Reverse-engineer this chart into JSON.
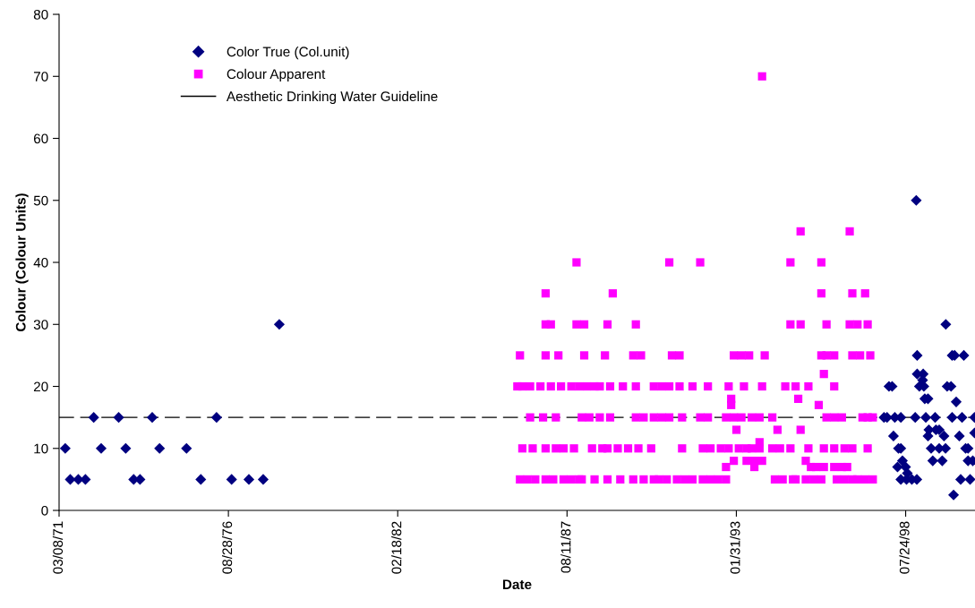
{
  "chart_data": {
    "type": "scatter",
    "xlabel": "Date",
    "ylabel": "Colour (Colour Units)",
    "xlim": [
      "1971-03-08",
      "2000-10-20"
    ],
    "ylim": [
      0,
      80
    ],
    "yticks": [
      0,
      10,
      20,
      30,
      40,
      50,
      60,
      70,
      80
    ],
    "xticks": [
      {
        "value": "1971-03-08",
        "label": "03/08/71"
      },
      {
        "value": "1976-08-28",
        "label": "08/28/76"
      },
      {
        "value": "1982-02-18",
        "label": "02/18/82"
      },
      {
        "value": "1987-08-11",
        "label": "08/11/87"
      },
      {
        "value": "1993-01-31",
        "label": "01/31/93"
      },
      {
        "value": "1998-07-24",
        "label": "07/24/98"
      }
    ],
    "grid": false,
    "legend": "top left",
    "ref_lines": [
      {
        "axis": "y",
        "value": 15,
        "label": "Aesthetic Drinking Water Guideline",
        "color": "#000000",
        "line_style": "dashed"
      }
    ],
    "series": [
      {
        "name": "Color True (Col.unit)",
        "color": "#000080",
        "marker": "diamond",
        "x": [
          "1971-05-20",
          "1971-07-18",
          "1971-10-21",
          "1972-01-13",
          "1972-04-20",
          "1972-07-17",
          "1973-02-09",
          "1973-05-03",
          "1973-08-05",
          "1973-10-19",
          "1974-03-12",
          "1974-06-07",
          "1975-04-21",
          "1975-10-07",
          "1976-04-10",
          "1976-10-05",
          "1977-04-27",
          "1977-10-13",
          "1978-04-21",
          "1997-11-10",
          "1997-12-16",
          "1998-01-08",
          "1998-02-14",
          "1998-03-02",
          "1998-03-18",
          "1998-04-19",
          "1998-04-30",
          "1998-05-28",
          "1998-05-28",
          "1998-05-28",
          "1998-06-16",
          "1998-07-23",
          "1998-08-03",
          "1998-08-13",
          "1998-10-05",
          "1998-11-14",
          "1998-11-26",
          "1998-12-03",
          "1998-12-07",
          "1998-12-07",
          "1999-01-02",
          "1999-02-09",
          "1999-02-16",
          "1999-02-24",
          "1999-03-07",
          "1999-03-19",
          "1999-04-14",
          "1999-04-14",
          "1999-04-24",
          "1999-05-21",
          "1999-06-09",
          "1999-07-07",
          "1999-07-17",
          "1999-08-24",
          "1999-08-24",
          "1999-09-29",
          "1999-10-20",
          "1999-11-07",
          "1999-11-10",
          "1999-11-26",
          "2000-01-11",
          "2000-01-24",
          "2000-01-24",
          "2000-02-10",
          "2000-02-22",
          "2000-03-12",
          "2000-04-18",
          "2000-05-04",
          "2000-05-20",
          "2000-06-10",
          "2000-07-01",
          "2000-07-30",
          "2000-07-30",
          "2000-08-23",
          "2000-09-24",
          "2000-10-15",
          "2000-10-15"
        ],
        "values": [
          10,
          5,
          5,
          5,
          15,
          10,
          15,
          10,
          5,
          5,
          15,
          10,
          10,
          5,
          15,
          5,
          5,
          5,
          30,
          15,
          15,
          20,
          20,
          12,
          15,
          7,
          10,
          15,
          10,
          5,
          8,
          7,
          5,
          6,
          5,
          15,
          50,
          5,
          25,
          22,
          20,
          21,
          22,
          20,
          18,
          15,
          18,
          12,
          13,
          10,
          8,
          15,
          13,
          13,
          10,
          8,
          12,
          10,
          30,
          20,
          20,
          15,
          25,
          2.5,
          25,
          17.5,
          12,
          5,
          15,
          25,
          10,
          10,
          8,
          5,
          8,
          15,
          12.5
        ]
      },
      {
        "name": "Colour Apparent",
        "color": "#ff00ff",
        "marker": "square",
        "x": [
          "1987-12",
          "1990-12",
          "1991-12",
          "1994-11",
          "1995-11",
          "1995-03",
          "1996-10",
          "1993-12",
          "1986-12",
          "1989-02",
          "1995-11",
          "1996-11",
          "1997-04",
          "1986-12",
          "1987-02",
          "1987-12",
          "1988-03",
          "1988-12",
          "1989-11",
          "1994-11",
          "1995-03",
          "1996-01",
          "1996-10",
          "1997-01",
          "1997-05",
          "1986-02",
          "1986-12",
          "1987-05",
          "1988-03",
          "1988-11",
          "1989-10",
          "1990-01",
          "1991-01",
          "1991-04",
          "1993-01",
          "1993-04",
          "1993-07",
          "1994-01",
          "1995-11",
          "1996-01",
          "1996-04",
          "1996-11",
          "1997-02",
          "1997-06",
          "1995-12",
          "1986-01",
          "1986-03",
          "1986-06",
          "1986-10",
          "1987-02",
          "1987-06",
          "1987-10",
          "1988-01",
          "1988-04",
          "1988-07",
          "1988-09",
          "1989-01",
          "1989-06",
          "1989-11",
          "1990-06",
          "1990-09",
          "1990-12",
          "1991-04",
          "1991-09",
          "1992-03",
          "1992-11",
          "1993-05",
          "1993-12",
          "1994-09",
          "1995-01",
          "1995-06",
          "1996-04",
          "1992-12",
          "1995-02",
          "1992-12",
          "1995-10",
          "1986-06",
          "1986-11",
          "1987-04",
          "1988-02",
          "1988-05",
          "1988-09",
          "1989-01",
          "1989-11",
          "1990-02",
          "1990-06",
          "1990-09",
          "1990-12",
          "1991-05",
          "1991-12",
          "1992-03",
          "1992-10",
          "1993-01",
          "1993-04",
          "1993-08",
          "1993-11",
          "1994-04",
          "1996-01",
          "1996-04",
          "1996-07",
          "1997-03",
          "1997-05",
          "1997-07",
          "1993-02",
          "1994-06",
          "1995-03",
          "1993-11",
          "1986-03",
          "1986-07",
          "1986-12",
          "1987-04",
          "1987-07",
          "1987-11",
          "1988-06",
          "1988-10",
          "1988-12",
          "1989-04",
          "1989-08",
          "1989-12",
          "1990-05",
          "1991-05",
          "1992-01",
          "1992-04",
          "1992-08",
          "1992-11",
          "1993-03",
          "1993-06",
          "1993-08",
          "1993-11",
          "1994-04",
          "1994-07",
          "1994-11",
          "1995-06",
          "1995-12",
          "1996-04",
          "1996-08",
          "1996-11",
          "1997-05",
          "1993-01",
          "1993-06",
          "1993-09",
          "1993-12",
          "1995-05",
          "1992-10",
          "1993-09",
          "1995-07",
          "1995-09",
          "1995-12",
          "1996-04",
          "1996-07",
          "1996-09",
          "1986-02",
          "1986-05",
          "1986-08",
          "1986-12",
          "1987-03",
          "1987-07",
          "1987-10",
          "1988-01",
          "1988-02",
          "1988-07",
          "1988-12",
          "1989-05",
          "1989-10",
          "1990-02",
          "1990-06",
          "1990-08",
          "1990-11",
          "1991-03",
          "1991-06",
          "1991-09",
          "1992-01",
          "1992-04",
          "1992-07",
          "1992-10",
          "1994-05",
          "1994-08",
          "1994-12",
          "1995-01",
          "1995-05",
          "1995-08",
          "1995-11",
          "1996-05",
          "1996-08",
          "1996-11",
          "1997-01",
          "1997-04",
          "1997-07"
        ],
        "values": [
          40,
          40,
          40,
          40,
          40,
          45,
          45,
          70,
          35,
          35,
          35,
          35,
          35,
          30,
          30,
          30,
          30,
          30,
          30,
          30,
          30,
          30,
          30,
          30,
          30,
          25,
          25,
          25,
          25,
          25,
          25,
          25,
          25,
          25,
          25,
          25,
          25,
          25,
          25,
          25,
          25,
          25,
          25,
          25,
          22,
          20,
          20,
          20,
          20,
          20,
          20,
          20,
          20,
          20,
          20,
          20,
          20,
          20,
          20,
          20,
          20,
          20,
          20,
          20,
          20,
          20,
          20,
          20,
          20,
          20,
          20,
          20,
          18,
          18,
          17,
          17,
          15,
          15,
          15,
          15,
          15,
          15,
          15,
          15,
          15,
          15,
          15,
          15,
          15,
          15,
          15,
          15,
          15,
          15,
          15,
          15,
          15,
          15,
          15,
          15,
          15,
          15,
          15,
          13,
          13,
          13,
          11,
          10,
          10,
          10,
          10,
          10,
          10,
          10,
          10,
          10,
          10,
          10,
          10,
          10,
          10,
          10,
          10,
          10,
          10,
          10,
          10,
          10,
          10,
          10,
          10,
          10,
          10,
          10,
          10,
          10,
          10,
          10,
          8,
          8,
          8,
          8,
          8,
          7,
          7,
          7,
          7,
          7,
          7,
          7,
          7,
          5,
          5,
          5,
          5,
          5,
          5,
          5,
          5,
          5,
          5,
          5,
          5,
          5,
          5,
          5,
          5,
          5,
          5,
          5,
          5,
          5,
          5,
          5,
          5,
          5,
          5,
          5,
          5,
          5,
          5,
          5,
          5,
          5,
          5,
          5,
          5,
          5
        ]
      }
    ]
  }
}
